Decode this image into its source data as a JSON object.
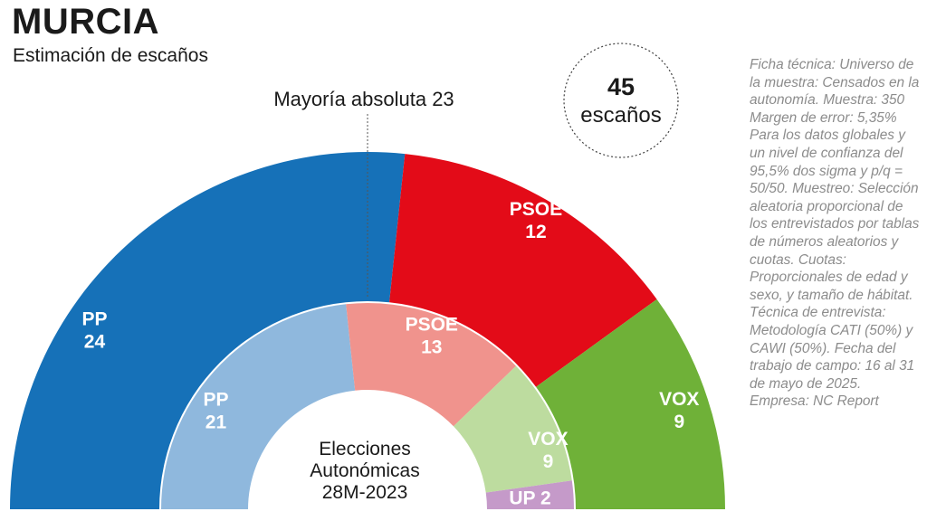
{
  "title": "MURCIA",
  "subtitle": "Estimación de escaños",
  "majority_label": "Mayoría absoluta 23",
  "total": {
    "number": "45",
    "label": "escaños"
  },
  "center_label": [
    "Elecciones",
    "Autonómicas",
    "28M-2023"
  ],
  "ficha_tecnica": "Ficha técnica: Universo de la muestra: Censados en la autonomía. Muestra: 350 Margen de error: 5,35% Para los datos globales y un nivel de confianza del 95,5% dos sigma y p/q = 50/50. Muestreo: Selección aleatoria proporcional de los entrevistados por tablas de números aleatorios y cuotas. Cuotas: Proporcionales de edad y sexo, y tamaño de hábitat. Técnica de entrevista: Metodología CATI (50%) y CAWI (50%). Fecha del trabajo de campo: 16 al 31 de mayo de 2025. Empresa: NC Report",
  "chart_data": [
    {
      "type": "pie",
      "subtype": "parliament-semicircle",
      "series": [
        {
          "name": "PP",
          "value": 24,
          "color": "#1671b8"
        },
        {
          "name": "PSOE",
          "value": 12,
          "color": "#e30b18"
        },
        {
          "name": "VOX",
          "value": 9,
          "color": "#6fb138"
        }
      ],
      "total": 45,
      "majority": 23
    },
    {
      "type": "pie",
      "subtype": "parliament-semicircle",
      "series": [
        {
          "name": "PP",
          "value": 21,
          "color": "#8fb8dd"
        },
        {
          "name": "PSOE",
          "value": 13,
          "color": "#f0938d"
        },
        {
          "name": "VOX",
          "value": 9,
          "color": "#bddc9f"
        },
        {
          "name": "UP",
          "value": 2,
          "color": "#c59ac9"
        }
      ],
      "total": 45
    }
  ]
}
